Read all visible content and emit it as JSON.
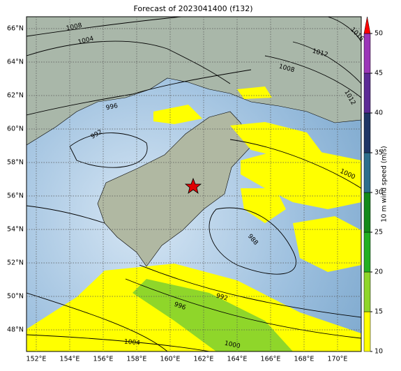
{
  "title": "Forecast of 2023041400 (f132)",
  "lon_ticks": [
    {
      "value": 152,
      "label": "152°E"
    },
    {
      "value": 154,
      "label": "154°E"
    },
    {
      "value": 156,
      "label": "156°E"
    },
    {
      "value": 158,
      "label": "158°E"
    },
    {
      "value": 160,
      "label": "160°E"
    },
    {
      "value": 162,
      "label": "162°E"
    },
    {
      "value": 164,
      "label": "164°E"
    },
    {
      "value": 166,
      "label": "166°E"
    },
    {
      "value": 168,
      "label": "168°E"
    },
    {
      "value": 170,
      "label": "170°E"
    }
  ],
  "lat_ticks": [
    {
      "value": 66,
      "label": "66°N"
    },
    {
      "value": 64,
      "label": "64°N"
    },
    {
      "value": 62,
      "label": "62°N"
    },
    {
      "value": 60,
      "label": "60°N"
    },
    {
      "value": 58,
      "label": "58°N"
    },
    {
      "value": 56,
      "label": "56°N"
    },
    {
      "value": 54,
      "label": "54°N"
    },
    {
      "value": 52,
      "label": "52°N"
    },
    {
      "value": 50,
      "label": "50°N"
    },
    {
      "value": 48,
      "label": "48°N"
    }
  ],
  "colorbar": {
    "label": "10 m wind speed (m/s)",
    "bounds": [
      10,
      15,
      20,
      25,
      30,
      35,
      40,
      45,
      50
    ],
    "colors": [
      "#ffff00",
      "#8fd62a",
      "#22b022",
      "#138a1a",
      "#2d6e8c",
      "#1f3566",
      "#5c2a96",
      "#9b36b8"
    ],
    "extend_color": "#ff0000"
  },
  "contour_labels": [
    "1008",
    "1004",
    "996",
    "992",
    "1008",
    "1012",
    "1016",
    "1012",
    "1000",
    "988",
    "992",
    "996",
    "1004",
    "1000"
  ]
}
